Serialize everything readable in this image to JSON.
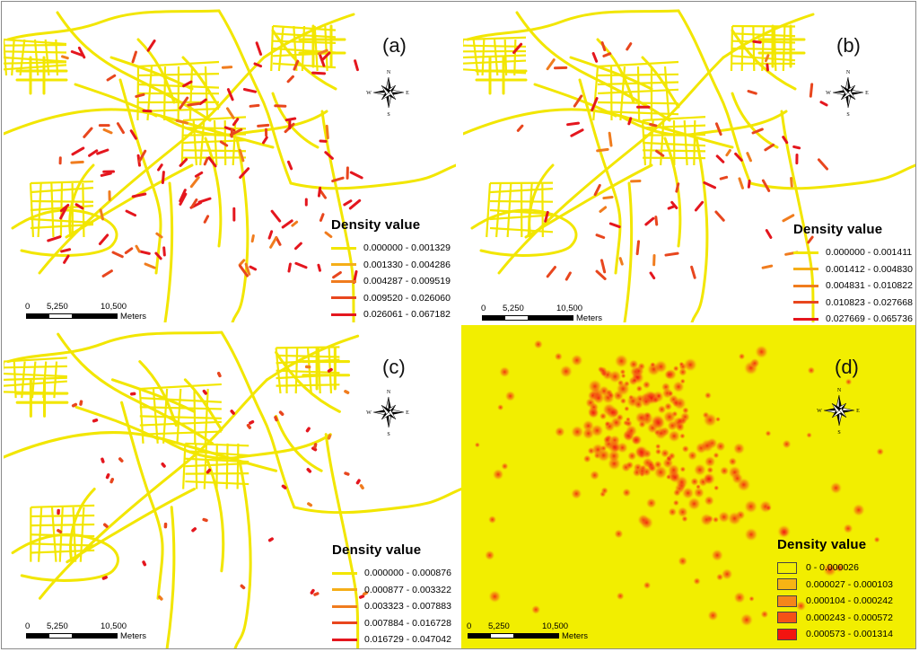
{
  "panels": [
    {
      "id": "a",
      "label": "(a)",
      "legend": {
        "title": "Density value",
        "classes": [
          {
            "range": "0.000000 - 0.001329",
            "color": "#f2e600"
          },
          {
            "range": "0.001330 - 0.004286",
            "color": "#f5ae18"
          },
          {
            "range": "0.004287 - 0.009519",
            "color": "#f07c1e"
          },
          {
            "range": "0.009520 - 0.026060",
            "color": "#e8461e"
          },
          {
            "range": "0.026061 - 0.067182",
            "color": "#e4161e"
          }
        ]
      },
      "scale": {
        "ticks": [
          "0",
          "5,250",
          "10,500"
        ],
        "unit": "Meters"
      }
    },
    {
      "id": "b",
      "label": "(b)",
      "legend": {
        "title": "Density value",
        "classes": [
          {
            "range": "0.000000 - 0.001411",
            "color": "#f2e600"
          },
          {
            "range": "0.001412 - 0.004830",
            "color": "#f5ae18"
          },
          {
            "range": "0.004831 - 0.010822",
            "color": "#f07c1e"
          },
          {
            "range": "0.010823 - 0.027668",
            "color": "#e8461e"
          },
          {
            "range": "0.027669 - 0.065736",
            "color": "#e4161e"
          }
        ]
      },
      "scale": {
        "ticks": [
          "0",
          "5,250",
          "10,500"
        ],
        "unit": "Meters"
      }
    },
    {
      "id": "c",
      "label": "(c)",
      "legend": {
        "title": "Density value",
        "classes": [
          {
            "range": "0.000000 - 0.000876",
            "color": "#f2e600"
          },
          {
            "range": "0.000877 - 0.003322",
            "color": "#f5ae18"
          },
          {
            "range": "0.003323 - 0.007883",
            "color": "#f07c1e"
          },
          {
            "range": "0.007884 - 0.016728",
            "color": "#e8461e"
          },
          {
            "range": "0.016729 - 0.047042",
            "color": "#e4161e"
          }
        ]
      },
      "scale": {
        "ticks": [
          "0",
          "5,250",
          "10,500"
        ],
        "unit": "Meters"
      }
    },
    {
      "id": "d",
      "label": "(d)",
      "legend": {
        "title": "Density value",
        "classes": [
          {
            "range": "0 - 0.000026",
            "color": "#f2ee00"
          },
          {
            "range": "0.000027 - 0.000103",
            "color": "#f6b414"
          },
          {
            "range": "0.000104 - 0.000242",
            "color": "#f5861a"
          },
          {
            "range": "0.000243 - 0.000572",
            "color": "#f55216"
          },
          {
            "range": "0.000573 - 0.001314",
            "color": "#f21410"
          }
        ]
      },
      "scale": {
        "ticks": [
          "0",
          "5,250",
          "10,500"
        ],
        "unit": "Meters"
      }
    }
  ],
  "compass": {
    "n": "N",
    "s": "S",
    "e": "E",
    "w": "W"
  },
  "colors": {
    "road": "#f2e600",
    "hot": "#e4161e",
    "mid": "#f07c1e",
    "surface": "#f2ee00"
  }
}
